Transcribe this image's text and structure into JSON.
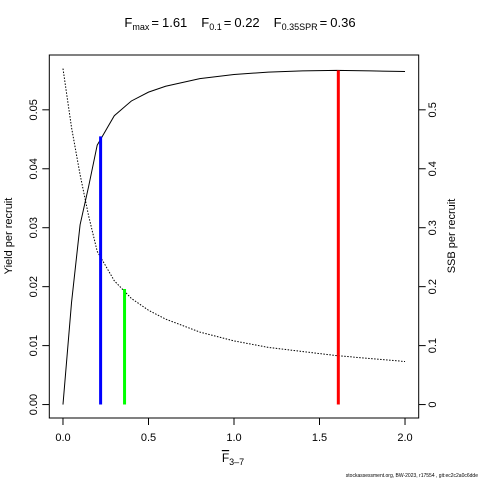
{
  "chart_data": {
    "type": "line",
    "title_separator": "=",
    "reference_points": [
      {
        "symbol": "F",
        "subscript": "max",
        "value": 1.61,
        "height": 0.0567,
        "axis": "y",
        "color": "#ff0000"
      },
      {
        "symbol": "F",
        "subscript": "0.1",
        "value": 0.22,
        "height": 0.0455,
        "axis": "y",
        "color": "#0000ff"
      },
      {
        "symbol": "F",
        "subscript": "0.35SPR",
        "value": 0.36,
        "height": 0.196,
        "axis": "y2",
        "color": "#00ff00"
      }
    ],
    "x_label": {
      "main": "F",
      "sub": "3–7"
    },
    "y_label": "Yield per recruit",
    "y2_label": "SSB per recruit",
    "footer": "stockassessment.org, BW-2023, r17554 , git:ec2c2a0c6dde",
    "x": [
      0,
      0.05,
      0.1,
      0.15,
      0.2,
      0.25,
      0.3,
      0.4,
      0.5,
      0.6,
      0.8,
      1.0,
      1.2,
      1.4,
      1.6,
      1.8,
      2.0
    ],
    "series": [
      {
        "name": "Yield per recruit",
        "color": "#000000",
        "dash": "solid",
        "values": [
          0,
          0.0173,
          0.0305,
          0.037,
          0.044,
          0.0465,
          0.049,
          0.0515,
          0.053,
          0.054,
          0.0553,
          0.056,
          0.0564,
          0.0566,
          0.0567,
          0.0566,
          0.0565
        ]
      },
      {
        "name": "SSB per recruit",
        "color": "#000000",
        "dash": "dotted",
        "axis": "y2",
        "values": [
          0.57,
          0.47,
          0.39,
          0.32,
          0.26,
          0.235,
          0.21,
          0.18,
          0.16,
          0.145,
          0.123,
          0.108,
          0.097,
          0.09,
          0.083,
          0.078,
          0.073
        ]
      }
    ],
    "xlim": [
      -0.08,
      2.08
    ],
    "xticks": [
      {
        "value": 0,
        "label": "0.0"
      },
      0.5,
      {
        "value": 1,
        "label": "1.0"
      },
      1.5,
      {
        "value": 2,
        "label": "2.0"
      }
    ],
    "ylim": [
      -0.00228,
      0.0593
    ],
    "yticks": [
      {
        "value": 0,
        "label": "0.00"
      },
      {
        "value": 0.01,
        "label": "0.01"
      },
      {
        "value": 0.02,
        "label": "0.02"
      },
      {
        "value": 0.03,
        "label": "0.03"
      },
      {
        "value": 0.04,
        "label": "0.04"
      },
      {
        "value": 0.05,
        "label": "0.05"
      }
    ],
    "y2lim": [
      -0.0228,
      0.593
    ],
    "y2ticks": [
      0,
      0.1,
      0.2,
      0.3,
      0.4,
      0.5
    ]
  }
}
